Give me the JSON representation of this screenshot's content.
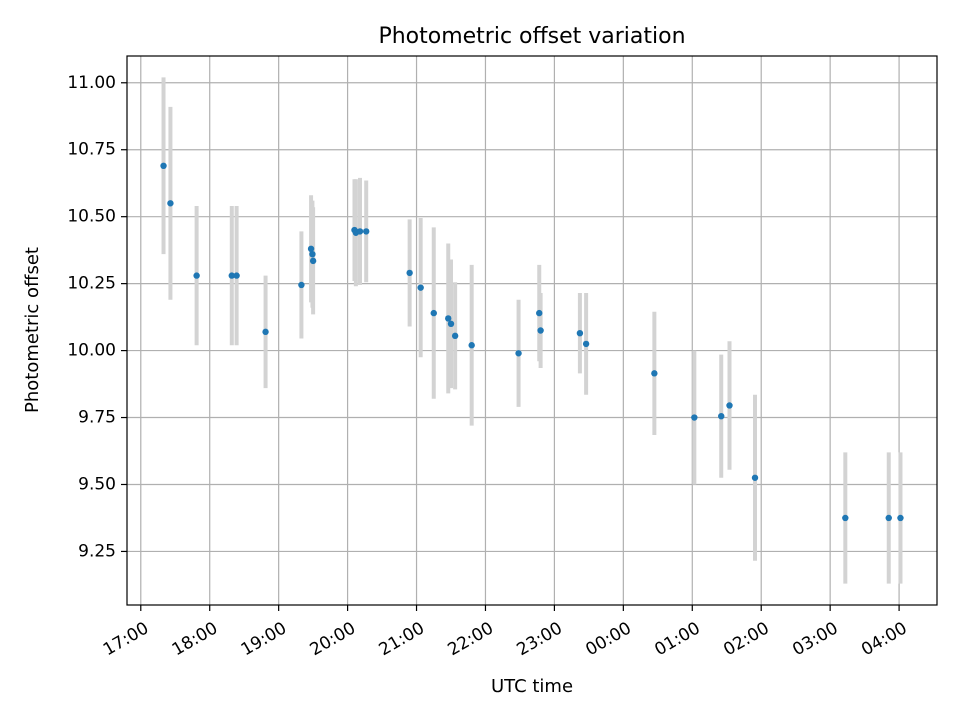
{
  "chart_data": {
    "type": "scatter",
    "title": "Photometric offset variation",
    "xlabel": "UTC time",
    "ylabel": "Photometric offset",
    "x_unit": "hours",
    "xlim": [
      16.8,
      28.55
    ],
    "ylim": [
      9.05,
      11.1
    ],
    "x_ticks": [
      {
        "value": 17,
        "label": "17:00"
      },
      {
        "value": 18,
        "label": "18:00"
      },
      {
        "value": 19,
        "label": "19:00"
      },
      {
        "value": 20,
        "label": "20:00"
      },
      {
        "value": 21,
        "label": "21:00"
      },
      {
        "value": 22,
        "label": "22:00"
      },
      {
        "value": 23,
        "label": "23:00"
      },
      {
        "value": 24,
        "label": "00:00"
      },
      {
        "value": 25,
        "label": "01:00"
      },
      {
        "value": 26,
        "label": "02:00"
      },
      {
        "value": 27,
        "label": "03:00"
      },
      {
        "value": 28,
        "label": "04:00"
      }
    ],
    "y_ticks": [
      {
        "value": 9.25,
        "label": "9.25"
      },
      {
        "value": 9.5,
        "label": "9.50"
      },
      {
        "value": 9.75,
        "label": "9.75"
      },
      {
        "value": 10.0,
        "label": "10.00"
      },
      {
        "value": 10.25,
        "label": "10.25"
      },
      {
        "value": 10.5,
        "label": "10.50"
      },
      {
        "value": 10.75,
        "label": "10.75"
      },
      {
        "value": 11.0,
        "label": "11.00"
      }
    ],
    "grid": true,
    "colors": {
      "point": "#1f77b4",
      "errorbar": "#d3d3d3",
      "grid": "#b0b0b0",
      "axes": "#000000"
    },
    "points": [
      {
        "x": 17.33,
        "y": 10.69,
        "err": 0.33
      },
      {
        "x": 17.43,
        "y": 10.55,
        "err": 0.36
      },
      {
        "x": 17.81,
        "y": 10.28,
        "err": 0.26
      },
      {
        "x": 18.32,
        "y": 10.28,
        "err": 0.26
      },
      {
        "x": 18.39,
        "y": 10.28,
        "err": 0.26
      },
      {
        "x": 18.81,
        "y": 10.07,
        "err": 0.21
      },
      {
        "x": 19.33,
        "y": 10.245,
        "err": 0.2
      },
      {
        "x": 19.47,
        "y": 10.38,
        "err": 0.2
      },
      {
        "x": 19.49,
        "y": 10.36,
        "err": 0.2
      },
      {
        "x": 19.5,
        "y": 10.335,
        "err": 0.2
      },
      {
        "x": 20.1,
        "y": 10.45,
        "err": 0.19
      },
      {
        "x": 20.12,
        "y": 10.44,
        "err": 0.2
      },
      {
        "x": 20.18,
        "y": 10.445,
        "err": 0.2
      },
      {
        "x": 20.27,
        "y": 10.445,
        "err": 0.19
      },
      {
        "x": 20.9,
        "y": 10.29,
        "err": 0.2
      },
      {
        "x": 21.06,
        "y": 10.235,
        "err": 0.26
      },
      {
        "x": 21.25,
        "y": 10.14,
        "err": 0.32
      },
      {
        "x": 21.46,
        "y": 10.12,
        "err": 0.28
      },
      {
        "x": 21.5,
        "y": 10.1,
        "err": 0.24
      },
      {
        "x": 21.56,
        "y": 10.055,
        "err": 0.2
      },
      {
        "x": 21.8,
        "y": 10.02,
        "err": 0.3
      },
      {
        "x": 22.48,
        "y": 9.99,
        "err": 0.2
      },
      {
        "x": 22.78,
        "y": 10.14,
        "err": 0.18
      },
      {
        "x": 22.8,
        "y": 10.075,
        "err": 0.14
      },
      {
        "x": 23.37,
        "y": 10.065,
        "err": 0.15
      },
      {
        "x": 23.46,
        "y": 10.025,
        "err": 0.19
      },
      {
        "x": 24.45,
        "y": 9.915,
        "err": 0.23
      },
      {
        "x": 25.03,
        "y": 9.75,
        "err": 0.25
      },
      {
        "x": 25.42,
        "y": 9.755,
        "err": 0.23
      },
      {
        "x": 25.54,
        "y": 9.795,
        "err": 0.24
      },
      {
        "x": 25.91,
        "y": 9.525,
        "err": 0.31
      },
      {
        "x": 27.22,
        "y": 9.375,
        "err": 0.245
      },
      {
        "x": 27.85,
        "y": 9.375,
        "err": 0.245
      },
      {
        "x": 28.02,
        "y": 9.375,
        "err": 0.245
      }
    ]
  }
}
